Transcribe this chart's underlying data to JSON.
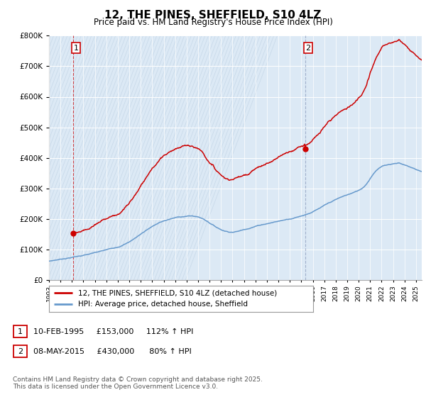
{
  "title": "12, THE PINES, SHEFFIELD, S10 4LZ",
  "subtitle": "Price paid vs. HM Land Registry's House Price Index (HPI)",
  "legend_line1": "12, THE PINES, SHEFFIELD, S10 4LZ (detached house)",
  "legend_line2": "HPI: Average price, detached house, Sheffield",
  "annotation1_text": "10-FEB-1995     £153,000     112% ↑ HPI",
  "annotation2_text": "08-MAY-2015     £430,000      80% ↑ HPI",
  "footer": "Contains HM Land Registry data © Crown copyright and database right 2025.\nThis data is licensed under the Open Government Licence v3.0.",
  "red_color": "#cc0000",
  "blue_color": "#6699cc",
  "bg_chart": "#dce9f5",
  "bg_figure": "#f0f0f0",
  "hatch_color": "#c0cfe0",
  "grid_color": "#ffffff",
  "sale1_year": 1995.11,
  "sale1_price": 153000,
  "sale2_year": 2015.35,
  "sale2_price": 430000,
  "ylim_max": 800000,
  "xmin": 1993,
  "xmax": 2025.5
}
